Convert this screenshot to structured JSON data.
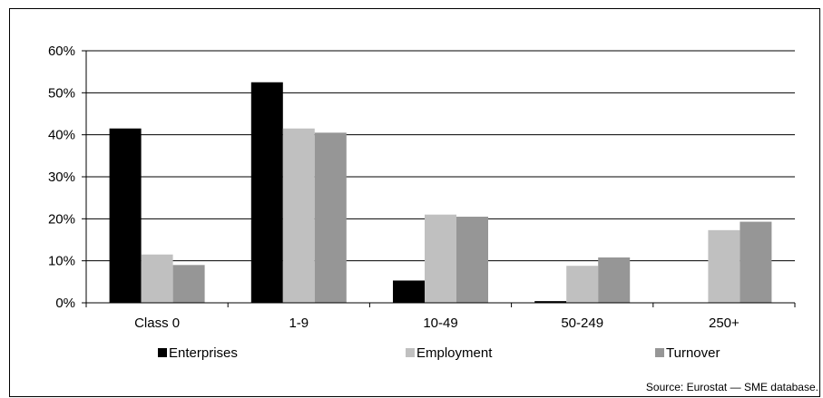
{
  "chart_data": {
    "type": "bar",
    "categories": [
      "Class 0",
      "1-9",
      "10-49",
      "50-249",
      "250+"
    ],
    "series": [
      {
        "name": "Enterprises",
        "values": [
          41.5,
          52.5,
          5.3,
          0.4,
          0.0
        ],
        "color": "#000000"
      },
      {
        "name": "Employment",
        "values": [
          11.5,
          41.5,
          21.0,
          8.8,
          17.3
        ],
        "color": "#c0c0c0"
      },
      {
        "name": "Turnover",
        "values": [
          9.0,
          40.5,
          20.5,
          10.8,
          19.3
        ],
        "color": "#969696"
      }
    ],
    "ylim": [
      0,
      60
    ],
    "yticks": [
      "0%",
      "10%",
      "20%",
      "30%",
      "40%",
      "50%",
      "60%"
    ],
    "title": "",
    "xlabel": "",
    "ylabel": "",
    "grid": true,
    "legend_position": "bottom"
  },
  "source": "Source: Eurostat — SME database."
}
